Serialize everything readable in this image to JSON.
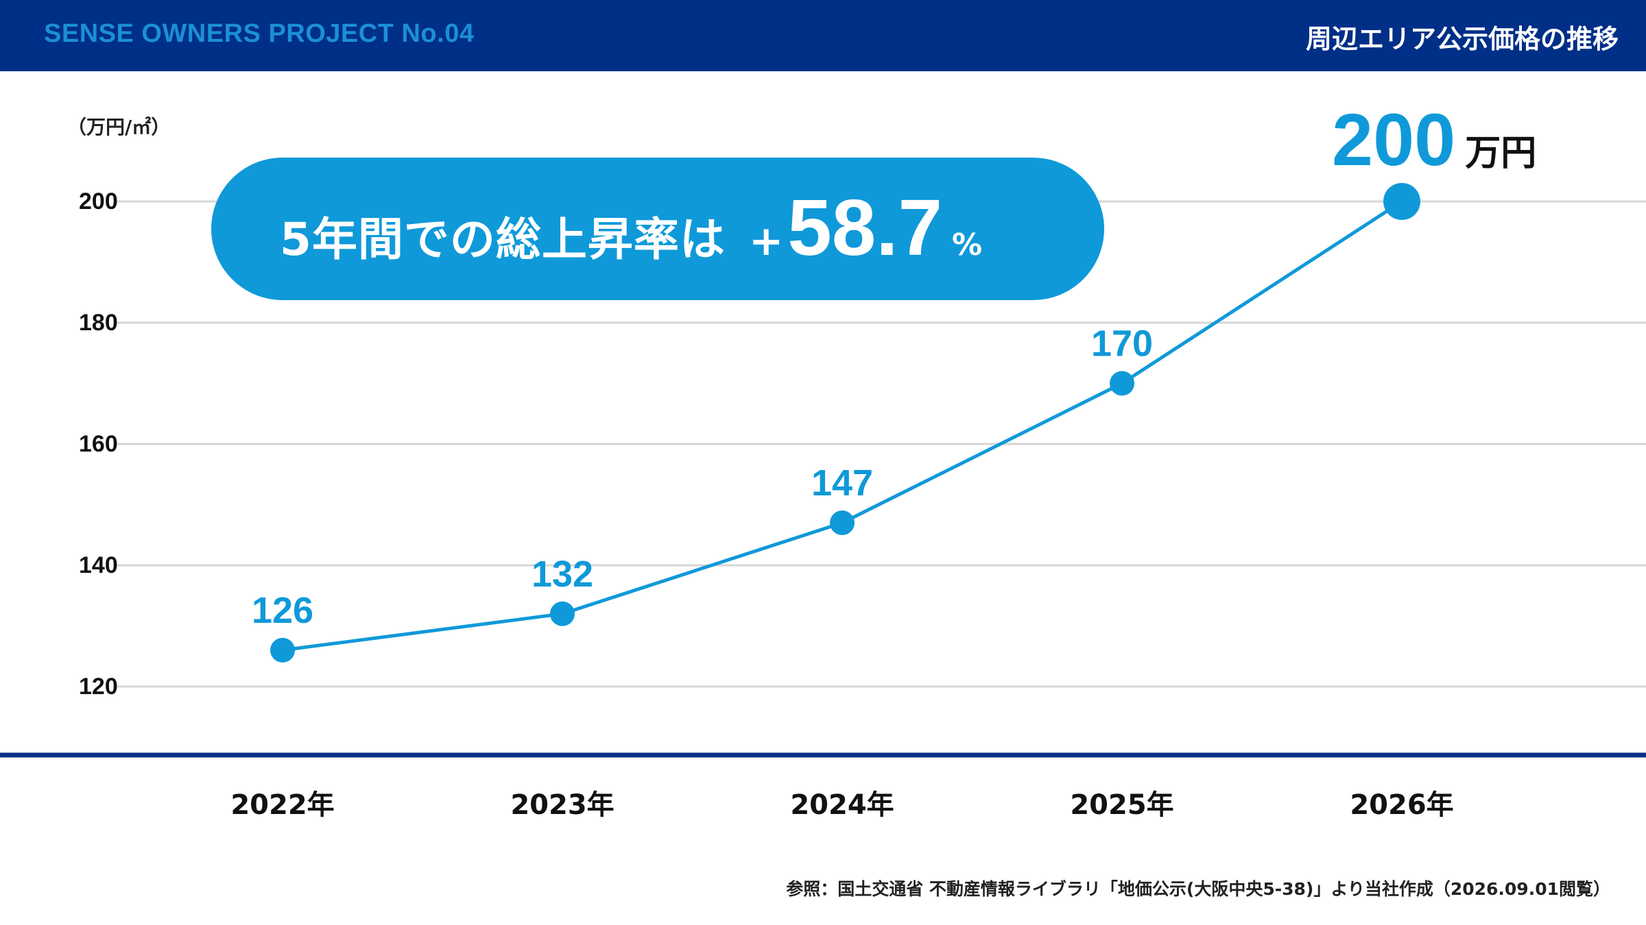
{
  "header": {
    "project_label": "SENSE OWNERS PROJECT No.04",
    "page_title": "周辺エリア公示価格の推移"
  },
  "callout": {
    "label": "5年間での総上昇率は",
    "sign": "+",
    "value": "58.7",
    "unit": "%"
  },
  "highlight": {
    "value": "200",
    "unit": "万円"
  },
  "source_note": "参照：国土交通省 不動産情報ライブラリ「地価公示(大阪中央5-38)」より当社作成（2026.09.01閲覧）",
  "colors": {
    "header_bg": "#002f87",
    "accent": "#0f99d9",
    "baseline": "#0b2f86",
    "grid": "#d6d6d6"
  },
  "chart_data": {
    "type": "line",
    "title": "",
    "xlabel": "",
    "ylabel": "（万円/㎡）",
    "categories": [
      "2022年",
      "2023年",
      "2024年",
      "2025年",
      "2026年"
    ],
    "series": [
      {
        "values": [
          126,
          132,
          147,
          170,
          200
        ],
        "data_labels": [
          "126",
          "132",
          "147",
          "170",
          ""
        ]
      }
    ],
    "yticks": [
      120,
      140,
      160,
      180,
      200
    ],
    "ylim": [
      120,
      200
    ],
    "grid": true,
    "legend": "none"
  }
}
